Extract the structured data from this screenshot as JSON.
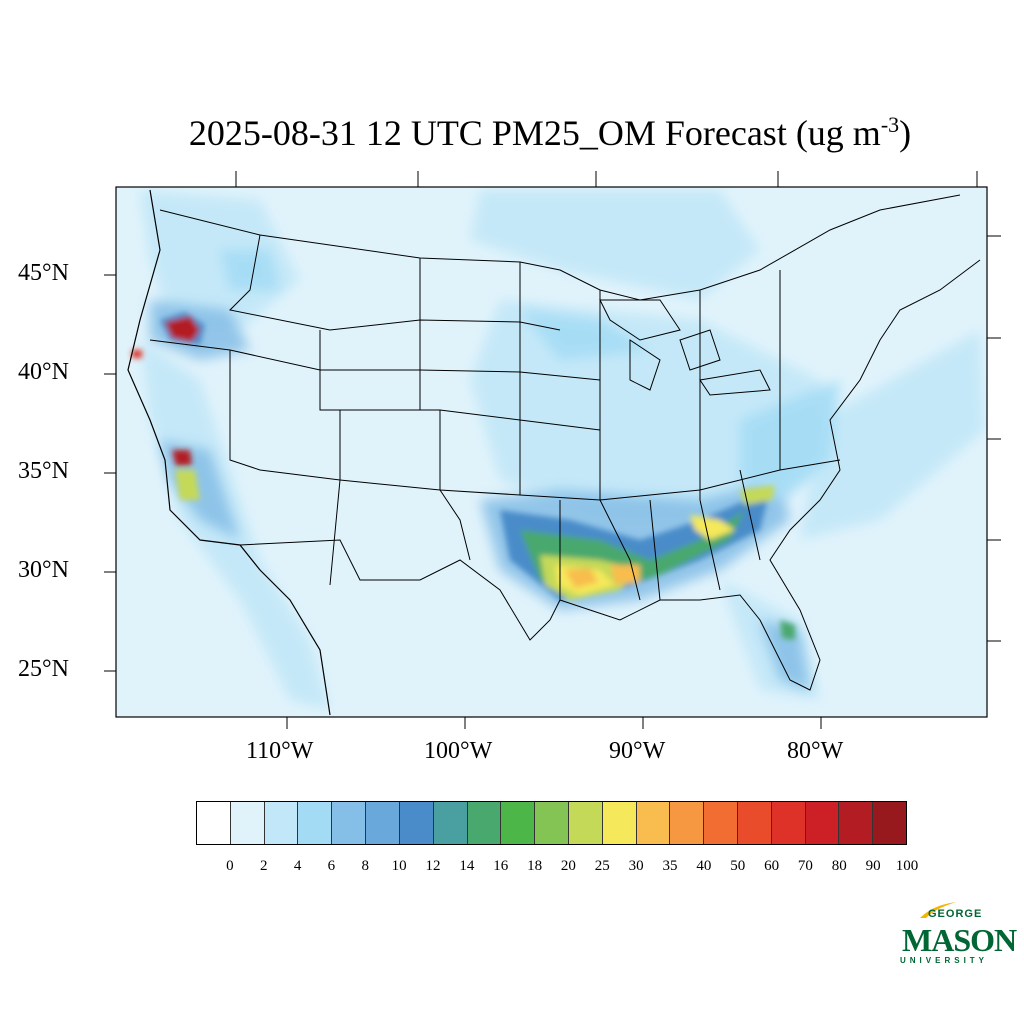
{
  "title": {
    "main": "2025-08-31 12 UTC PM25_OM Forecast (ug m",
    "exp": "-3",
    "close": ")"
  },
  "map": {
    "lat_labels": [
      "45°N",
      "40°N",
      "35°N",
      "30°N",
      "25°N"
    ],
    "lon_labels": [
      "110°W",
      "100°W",
      "90°W",
      "80°W"
    ]
  },
  "colorbar": {
    "labels": [
      "0",
      "2",
      "4",
      "6",
      "8",
      "10",
      "12",
      "14",
      "16",
      "18",
      "20",
      "25",
      "30",
      "35",
      "40",
      "50",
      "60",
      "70",
      "80",
      "90",
      "100"
    ],
    "colors": [
      "#ffffff",
      "#e0f3fb",
      "#c2e7f8",
      "#a3dbf5",
      "#85bee6",
      "#69a8da",
      "#4a8cc9",
      "#4a9fa0",
      "#48a86d",
      "#4cb748",
      "#84c455",
      "#c5d959",
      "#f5e85a",
      "#f8bd4e",
      "#f69842",
      "#f26d32",
      "#e94c2b",
      "#de3127",
      "#cc2026",
      "#b31c22",
      "#97191d"
    ]
  },
  "logo": {
    "line1": "GEORGE",
    "line2": "MASON",
    "line3": "UNIVERSITY",
    "color": "#006633",
    "accent": "#f2b705"
  }
}
